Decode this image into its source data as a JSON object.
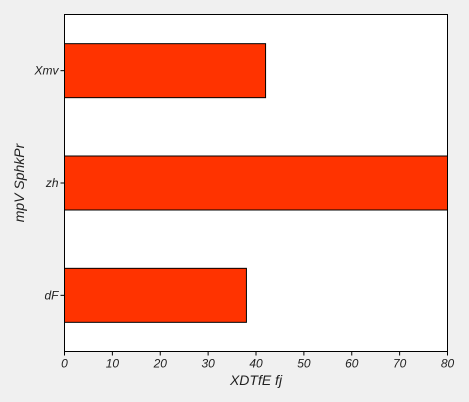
{
  "chart_data": {
    "type": "bar",
    "orientation": "horizontal",
    "categories": [
      "dF",
      "zh",
      "Xmv"
    ],
    "values": [
      38,
      80,
      42
    ],
    "xlabel": "XDTfE fj",
    "ylabel": "mpV SphkPr",
    "xlim": [
      0,
      80
    ],
    "x_ticks": [
      0,
      10,
      20,
      30,
      40,
      50,
      60,
      70,
      80
    ],
    "grid": false,
    "legend": "none",
    "colors": {
      "bar": "#ff3300",
      "bar_edge": "#000000",
      "plot_bg": "#ffffff",
      "page_bg": "#f0f0f0"
    }
  }
}
